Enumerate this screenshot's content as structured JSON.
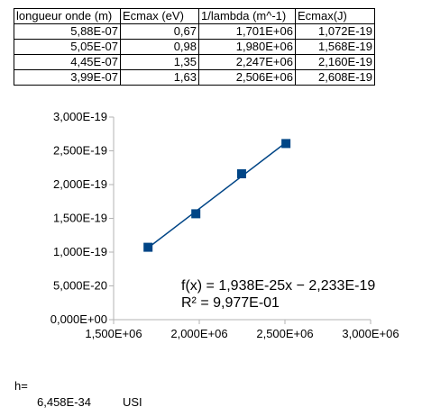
{
  "table": {
    "headers": [
      "longueur onde (m)",
      "Ecmax (eV)",
      "1/lambda (m^-1)",
      "Ecmax(J)"
    ],
    "rows": [
      [
        "5,88E-07",
        "0,67",
        "1,701E+06",
        "1,072E-19"
      ],
      [
        "5,05E-07",
        "0,98",
        "1,980E+06",
        "1,568E-19"
      ],
      [
        "4,45E-07",
        "1,35",
        "2,247E+06",
        "2,160E-19"
      ],
      [
        "3,99E-07",
        "1,63",
        "2,506E+06",
        "2,608E-19"
      ]
    ]
  },
  "chart_data": {
    "type": "scatter",
    "x": [
      1701000,
      1980000,
      2247000,
      2506000
    ],
    "y": [
      1.072e-19,
      1.568e-19,
      2.16e-19,
      2.608e-19
    ],
    "xlim": [
      1500000,
      3000000
    ],
    "ylim": [
      0,
      3e-19
    ],
    "x_tick_labels": [
      "1,500E+06",
      "2,000E+06",
      "2,500E+06",
      "3,000E+06"
    ],
    "y_tick_labels": [
      "0,000E+00",
      "5,000E-20",
      "1,000E-19",
      "1,500E-19",
      "2,000E-19",
      "2,500E-19",
      "3,000E-19"
    ],
    "series_color": "#004586",
    "marker": "square",
    "trendline": {
      "slope": 1.938e-25,
      "intercept": -2.233e-19
    },
    "annotations": [
      "f(x) = 1,938E-25x − 2,233E-19",
      "R² = 9,977E-01"
    ],
    "grid": false,
    "legend": "none"
  },
  "result": {
    "label": "h=",
    "value": "6,458E-34",
    "unit": "USI"
  }
}
